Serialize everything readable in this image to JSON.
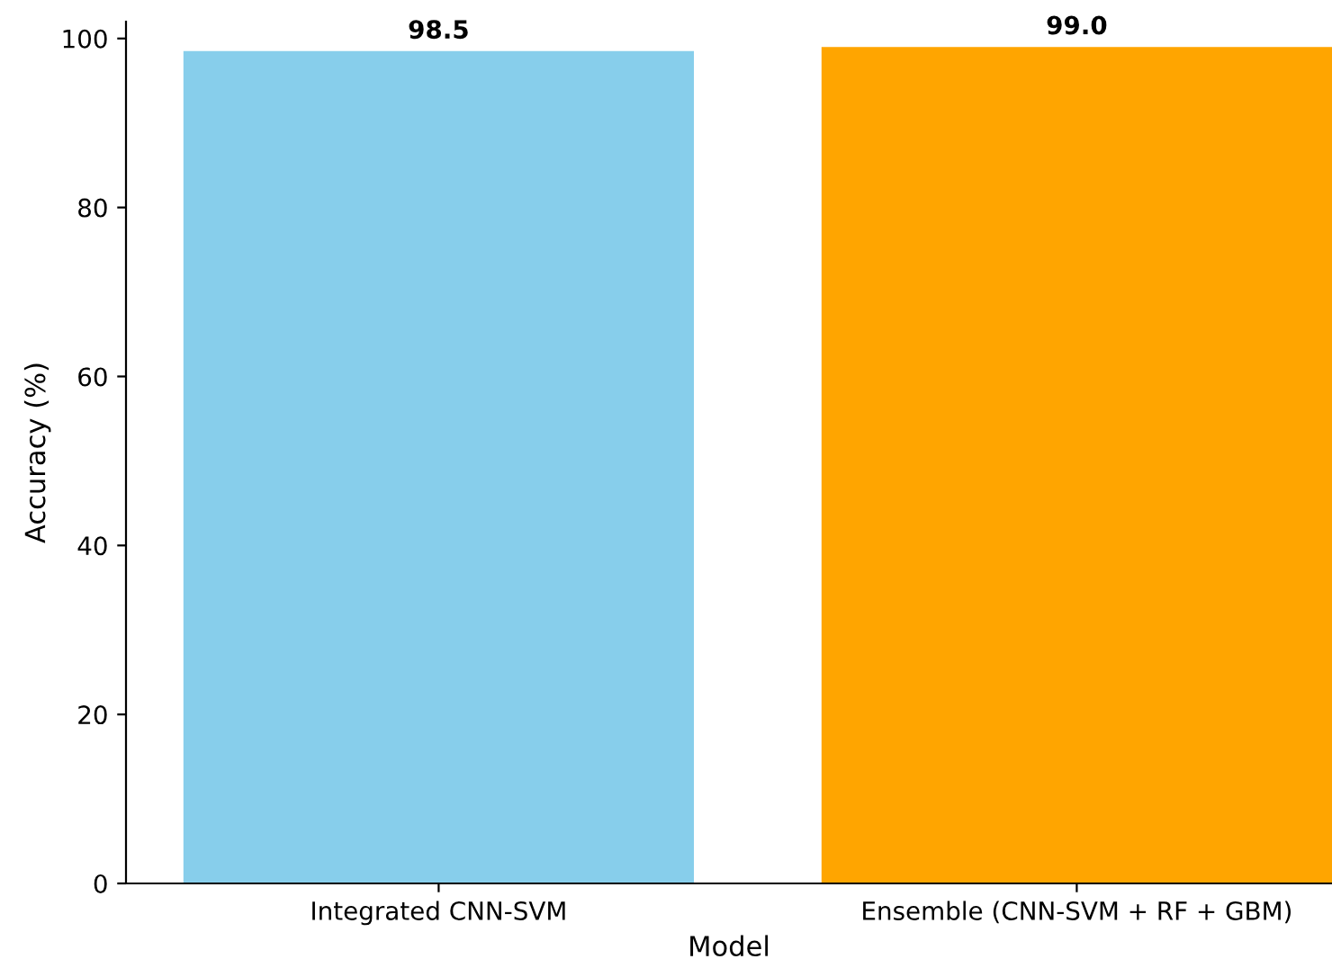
{
  "chart_data": {
    "type": "bar",
    "xlabel": "Model",
    "ylabel": "Accuracy (%)",
    "categories": [
      "Integrated CNN-SVM",
      "Ensemble (CNN-SVM + RF + GBM)"
    ],
    "values": [
      98.5,
      99.0
    ],
    "colors": [
      "#87ceeb",
      "#ffa500"
    ],
    "ylim": [
      0,
      102
    ],
    "yticks": [
      0,
      20,
      40,
      60,
      80,
      100
    ],
    "value_labels": [
      "98.5",
      "99.0"
    ],
    "grid": false
  }
}
